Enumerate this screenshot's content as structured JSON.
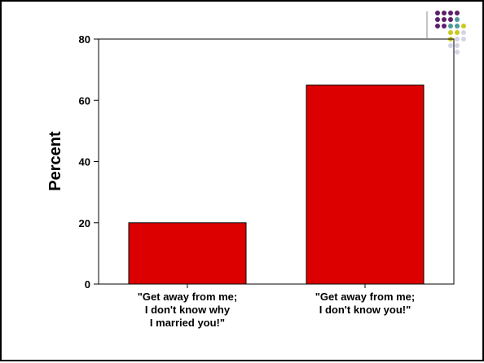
{
  "chart_data": {
    "type": "bar",
    "title": "",
    "xlabel": "",
    "ylabel": "Percent",
    "ylim": [
      0,
      80
    ],
    "yticks": [
      "0",
      "20",
      "40",
      "60",
      "80"
    ],
    "categories": [
      [
        "\"Get away from me;",
        "I don't know why",
        "I married you!\""
      ],
      [
        "\"Get away from me;",
        "I don't know you!\""
      ]
    ],
    "values": [
      20,
      65
    ],
    "bar_color": "#dd0000",
    "grid": false,
    "legend": "none"
  },
  "decoration": {
    "dot_colors": [
      "#5b1f6b",
      "#4f9a9a",
      "#c9c920",
      "#d4d4e6"
    ]
  }
}
